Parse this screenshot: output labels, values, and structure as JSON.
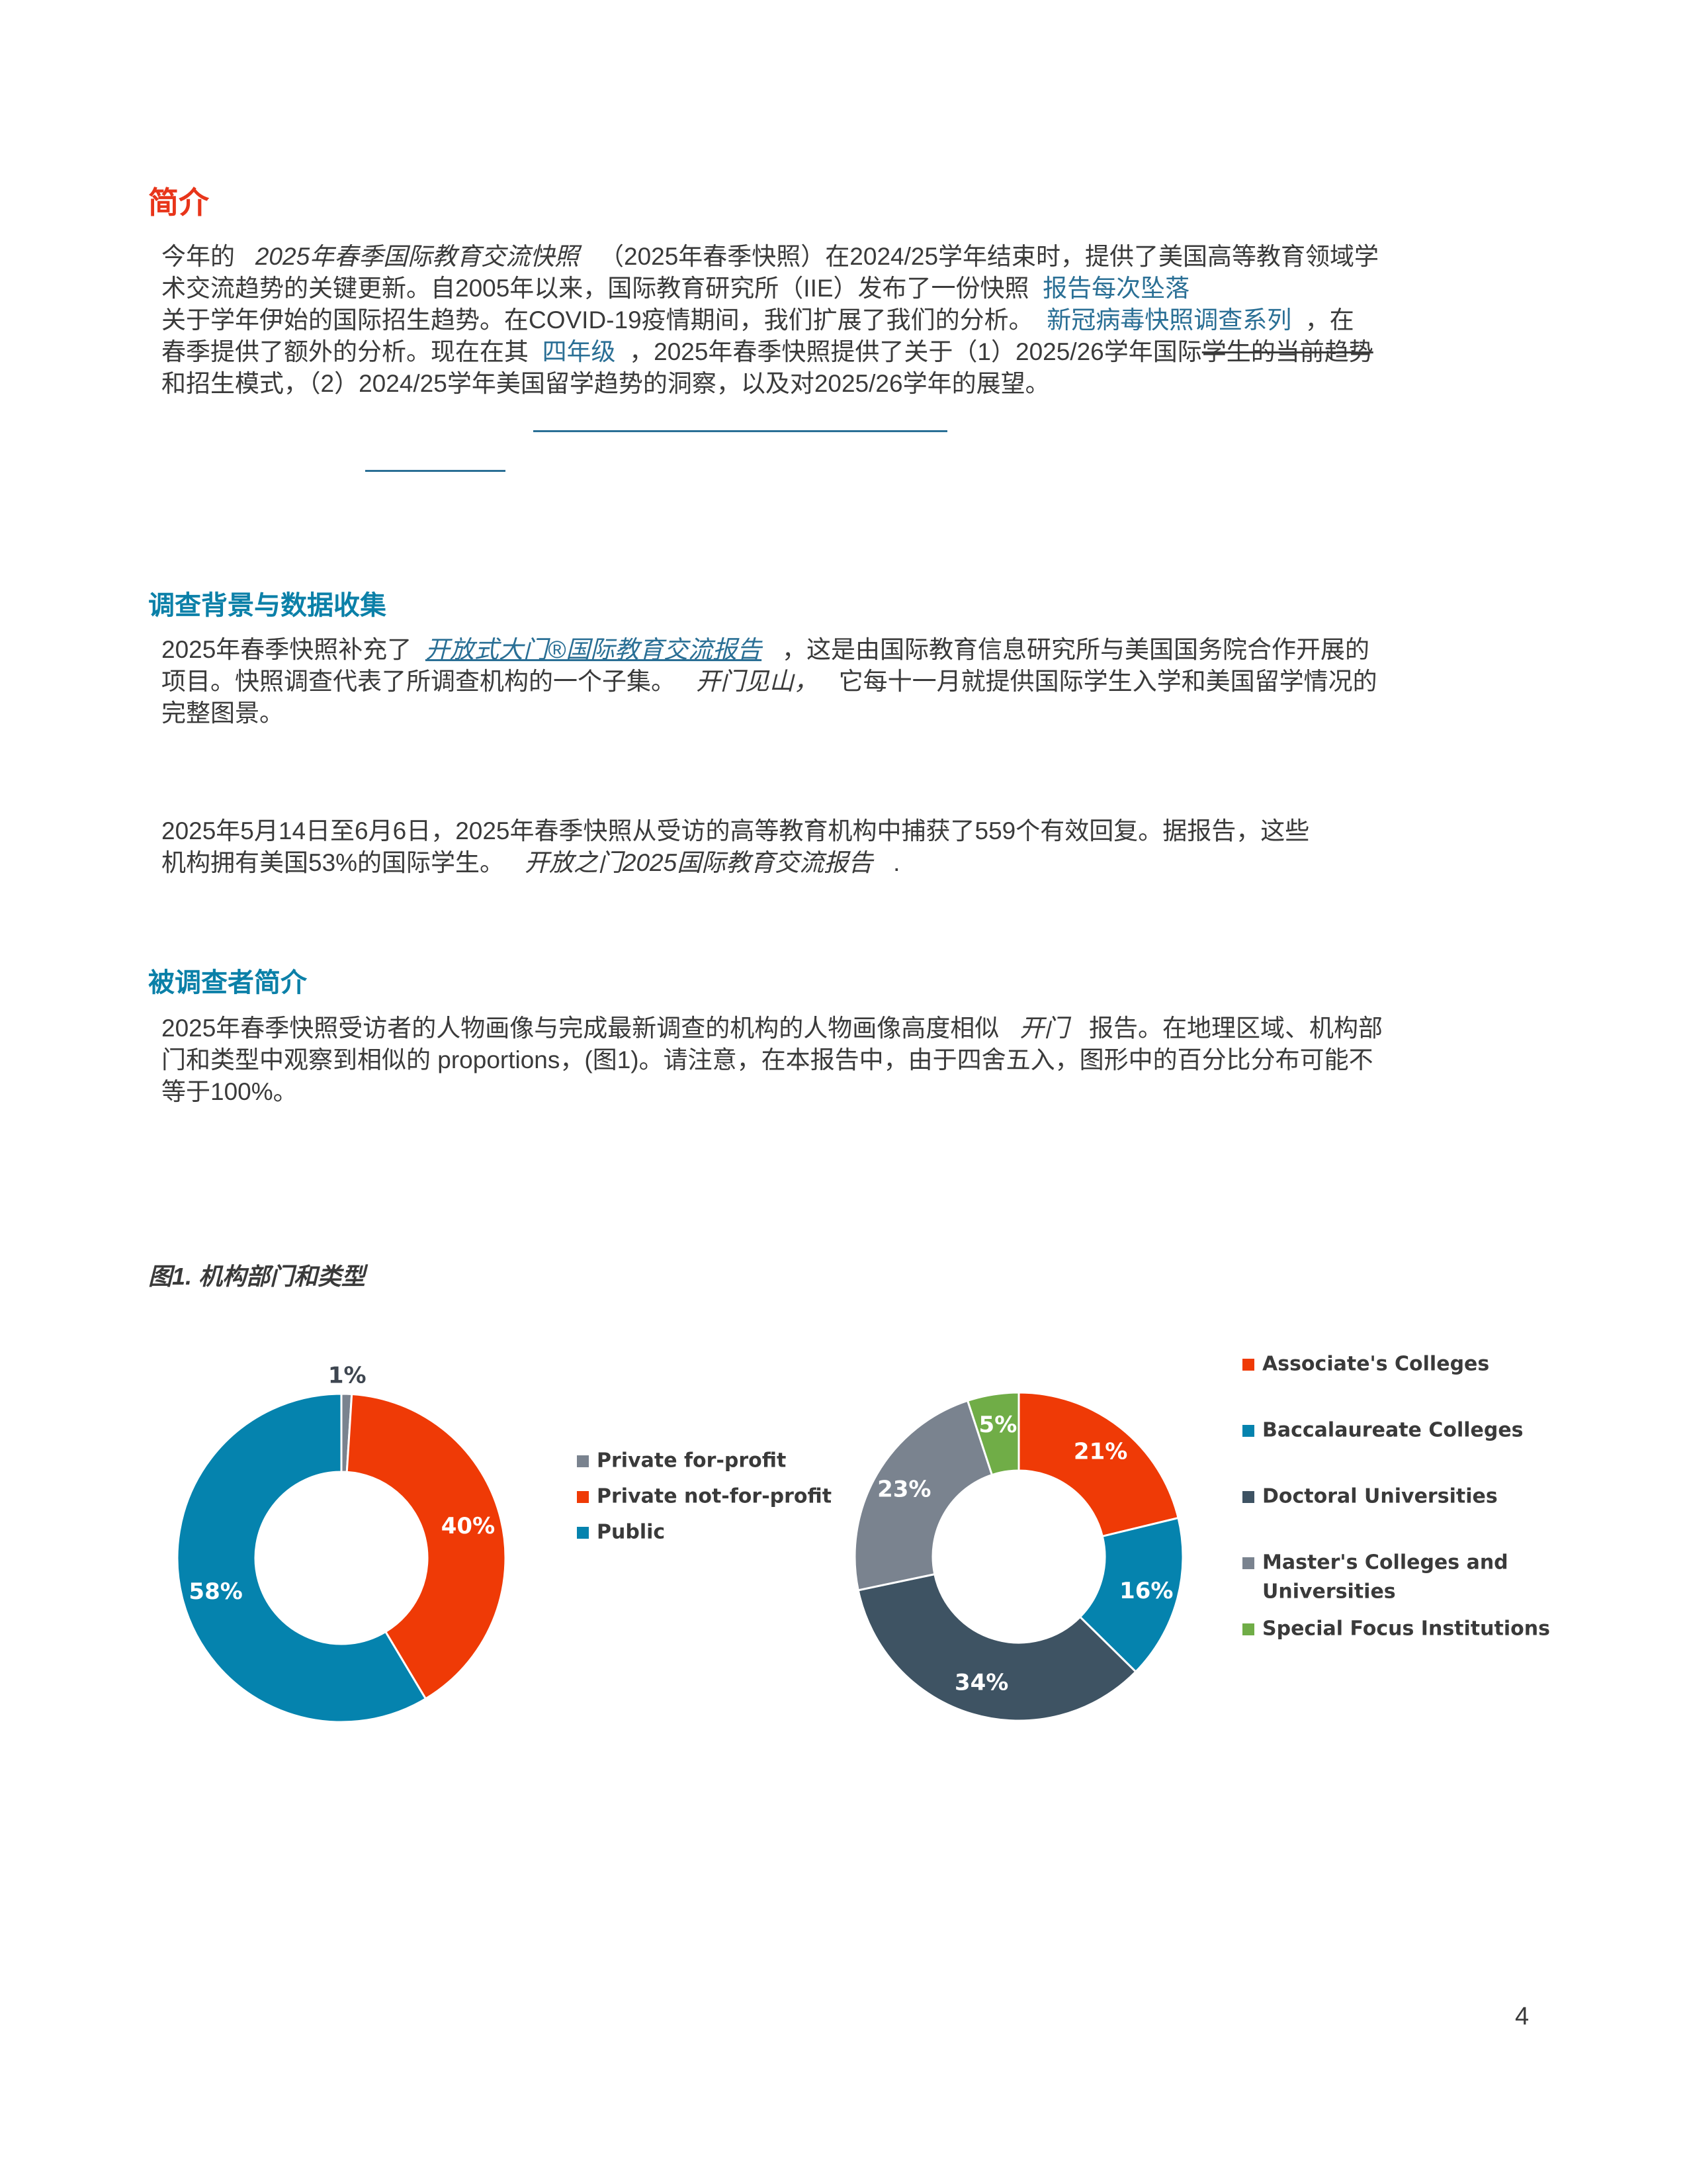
{
  "intro": {
    "heading": "简介",
    "l1a": "今年的",
    "l1b": "2025年春季国际教育交流快照",
    "l1c": "（2025年春季快照）在2024/25学年结束时，提供了美国高等教育领域学",
    "l2a": "术交流趋势的关键更新。自2005年以来，国际教育研究所（IIE）发布了一份快照",
    "l2b": "报告每次坠落",
    "l3a": "关于学年伊始的国际招生趋势。在COVID-19疫情期间，我们扩展了我们的分析。",
    "l3b": "新冠病毒快照调查系列",
    "l3c": "，在",
    "l4a": "春季提供了额外的分析。现在在其",
    "l4b": "四年级",
    "l4c": "，2025年春季快照提供了关于（1）2025/26学年国际",
    "l4d": "学生的当前趋势",
    "l5": "和招生模式，（2）2024/25学年美国留学趋势的洞察，以及对2025/26学年的展望。"
  },
  "background": {
    "heading": "调查背景与数据收集",
    "p1a": "2025年春季快照补充了",
    "p1b": "开放式大门®国际教育交流报告",
    "p1c": "，这是由国际教育信息研究所与美国国务院合作开展的",
    "p1d": "项目。快照调查代表了所调查机构的一个子集。",
    "p1e": "开门见山，",
    "p1f": "它每十一月就提供国际学生入学和美国留学情况的",
    "p1g": "完整图景。",
    "p2a": "2025年5月14日至6月6日，2025年春季快照从受访的高等教育机构中捕获了559个有效回复。据报告，这些",
    "p2b": "机构拥有美国53%的国际学生。",
    "p2c": "开放之门2025国际教育交流报告",
    "p2d": "."
  },
  "profile": {
    "heading": "被调查者简介",
    "l1a": "2025年春季快照受访者的人物画像与完成最新调查的机构的人物画像高度相似",
    "l1b": "开门",
    "l1c": "报告。在地理区域、机构部",
    "l2": "门和类型中观察到相似的 proportions，(图1)。请注意，在本报告中，由于四舍五入，图形中的百分比分布可能不",
    "l3": "等于100%。"
  },
  "figure": {
    "caption": "图1. 机构部门和类型"
  },
  "chart_data": [
    {
      "type": "pie",
      "title": "Institutional Sector",
      "categories": [
        "Private for-profit",
        "Private not-for-profit",
        "Public"
      ],
      "values": [
        1,
        40,
        58
      ],
      "labels": [
        "1%",
        "40%",
        "58%"
      ],
      "colors": [
        "#7a838f",
        "#ef3a06",
        "#0583ae"
      ],
      "label_colors": [
        "#3e4650",
        "#ffffff",
        "#ffffff"
      ]
    },
    {
      "type": "pie",
      "title": "Institutional Type",
      "categories": [
        "Associate's Colleges",
        "Baccalaureate Colleges",
        "Doctoral Universities",
        "Master's Colleges and Universities",
        "Special Focus Institutions"
      ],
      "legend_lines": [
        [
          "Associate's Colleges"
        ],
        [
          "Baccalaureate Colleges"
        ],
        [
          "Doctoral Universities"
        ],
        [
          "Master's Colleges and",
          "Universities"
        ],
        [
          "Special Focus Institutions"
        ]
      ],
      "values": [
        21,
        16,
        34,
        23,
        5
      ],
      "labels": [
        "21%",
        "16%",
        "34%",
        "23%",
        "5%"
      ],
      "colors": [
        "#ef3a06",
        "#0583ae",
        "#3e5363",
        "#7a838f",
        "#70ad47"
      ],
      "label_colors": [
        "#ffffff",
        "#ffffff",
        "#ffffff",
        "#ffffff",
        "#ffffff"
      ]
    }
  ],
  "page_number": "4"
}
